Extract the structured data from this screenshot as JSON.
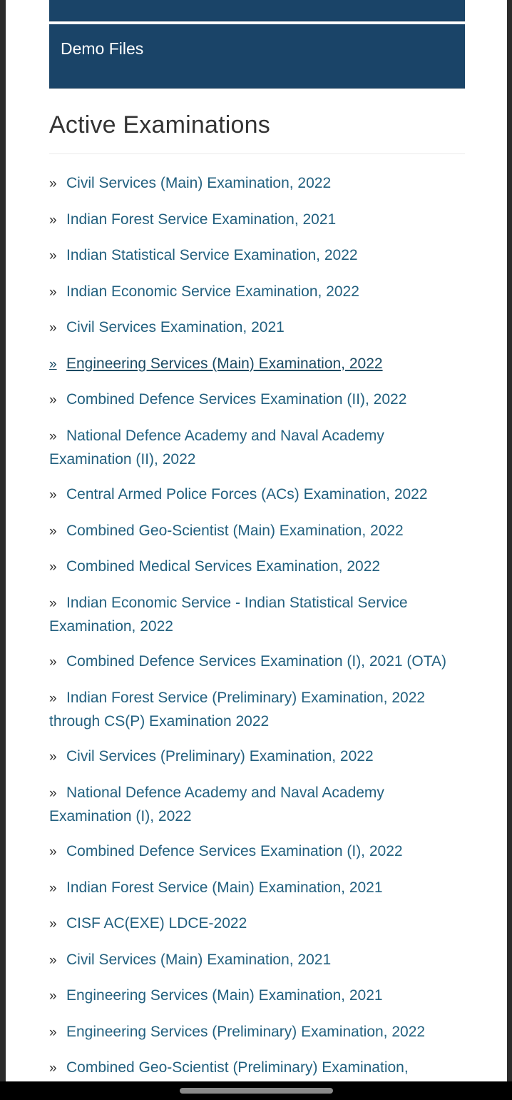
{
  "banners": {
    "top_label": "",
    "demo_files": "Demo Files"
  },
  "section": {
    "title": "Active Examinations"
  },
  "bullet_glyph": "»",
  "exams": [
    "Civil Services (Main) Examination, 2022",
    "Indian Forest Service Examination, 2021",
    "Indian Statistical Service Examination, 2022",
    "Indian Economic Service Examination, 2022",
    "Civil Services Examination, 2021",
    "Engineering Services (Main) Examination, 2022",
    "Combined Defence Services Examination (II), 2022",
    "National Defence Academy and Naval Academy Examination (II), 2022",
    "Central Armed Police Forces (ACs) Examination, 2022",
    "Combined Geo-Scientist (Main) Examination, 2022",
    "Combined Medical Services Examination, 2022",
    "Indian Economic Service - Indian Statistical Service Examination, 2022",
    "Combined Defence Services Examination (I), 2021 (OTA)",
    "Indian Forest Service (Preliminary) Examination, 2022 through CS(P) Examination 2022",
    "Civil Services (Preliminary) Examination, 2022",
    "National Defence Academy and Naval Academy Examination (I), 2022",
    "Combined Defence Services Examination (I), 2022",
    "Indian Forest Service (Main) Examination, 2021",
    "CISF AC(EXE) LDCE-2022",
    "Civil Services (Main) Examination, 2021",
    "Engineering Services (Main) Examination, 2021",
    "Engineering Services (Preliminary) Examination, 2022",
    "Combined Geo-Scientist (Preliminary) Examination,"
  ],
  "active_index": 5,
  "colors": {
    "banner": "#1a4468",
    "link": "#22607f",
    "heading": "#333333"
  }
}
